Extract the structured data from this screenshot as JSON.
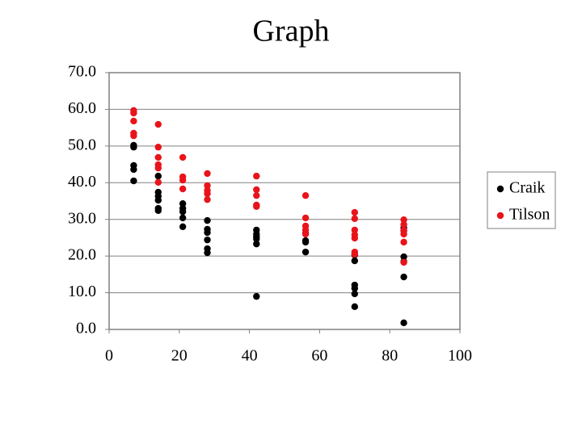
{
  "chart_data": {
    "type": "scatter",
    "title": "Graph",
    "series": [
      {
        "name": "Craik",
        "color": "#000000",
        "x": [
          7,
          7,
          7,
          7,
          7,
          14,
          14,
          14,
          14,
          14,
          14,
          21,
          21,
          21,
          21,
          21,
          28,
          28,
          28,
          28,
          28,
          28,
          42,
          42,
          42,
          42,
          42,
          42,
          56,
          56,
          56,
          56,
          70,
          70,
          70,
          70,
          70,
          70,
          84,
          84,
          84,
          84,
          84,
          84
        ],
        "values": [
          50.2,
          49.7,
          44.7,
          43.6,
          40.5,
          41.8,
          37.4,
          36.3,
          35.2,
          33.0,
          32.4,
          34.3,
          33.0,
          32.1,
          30.4,
          28.0,
          29.7,
          27.3,
          26.4,
          24.4,
          22.0,
          20.9,
          27.1,
          26.0,
          25.3,
          24.7,
          23.3,
          9.0,
          26.2,
          24.2,
          23.8,
          21.1,
          20.3,
          18.7,
          12.1,
          11.2,
          9.7,
          6.2,
          27.7,
          26.9,
          19.8,
          18.5,
          14.3,
          1.8
        ]
      },
      {
        "name": "Tilson",
        "color": "#e8141a",
        "x": [
          7,
          7,
          7,
          7,
          7,
          14,
          14,
          14,
          14,
          14,
          14,
          21,
          21,
          21,
          21,
          28,
          28,
          28,
          28,
          28,
          42,
          42,
          42,
          42,
          42,
          56,
          56,
          56,
          56,
          56,
          70,
          70,
          70,
          70,
          70,
          70,
          70,
          84,
          84,
          84,
          84,
          84,
          84
        ],
        "values": [
          59.7,
          59.0,
          56.8,
          53.5,
          52.8,
          55.9,
          49.7,
          46.9,
          44.9,
          44.0,
          40.1,
          46.9,
          41.6,
          40.7,
          38.3,
          42.5,
          39.2,
          37.9,
          37.0,
          35.4,
          41.8,
          38.1,
          36.5,
          33.9,
          33.5,
          36.5,
          30.4,
          28.2,
          27.1,
          26.0,
          31.9,
          30.2,
          27.1,
          25.8,
          24.9,
          21.1,
          20.5,
          29.9,
          28.6,
          27.1,
          26.0,
          23.8,
          18.3
        ]
      }
    ],
    "xlim": [
      0,
      100
    ],
    "xticks": [
      0,
      20,
      40,
      60,
      80,
      100
    ],
    "ylim": [
      0,
      70
    ],
    "yticks": [
      {
        "value": 0,
        "label": "0.0"
      },
      {
        "value": 10,
        "label": "10.0"
      },
      {
        "value": 20,
        "label": "20.0"
      },
      {
        "value": 30,
        "label": "30.0"
      },
      {
        "value": 40,
        "label": "40.0"
      },
      {
        "value": 50,
        "label": "50.0"
      },
      {
        "value": 60,
        "label": "60.0"
      },
      {
        "value": 70,
        "label": "70.0"
      }
    ],
    "grid": true,
    "legend": "right"
  }
}
